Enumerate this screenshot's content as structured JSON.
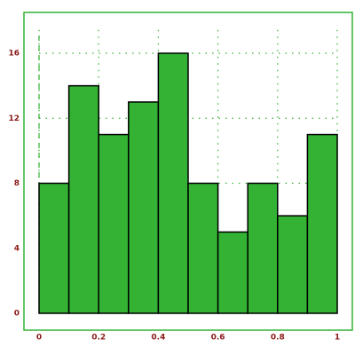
{
  "chart_data": {
    "type": "histogram",
    "bins": [
      0,
      0.1,
      0.2,
      0.3,
      0.4,
      0.5,
      0.6,
      0.7,
      0.8,
      0.9,
      1
    ],
    "values": [
      8,
      14,
      11,
      13,
      16,
      8,
      5,
      8,
      6,
      11
    ],
    "color": "#33b233",
    "xlim": [
      0,
      1
    ],
    "ylim": [
      0,
      17
    ],
    "xticks": [
      0,
      0.2,
      0.4,
      0.6,
      0.8,
      1
    ],
    "yticks": [
      0,
      4,
      8,
      12,
      16
    ],
    "grid": true
  }
}
